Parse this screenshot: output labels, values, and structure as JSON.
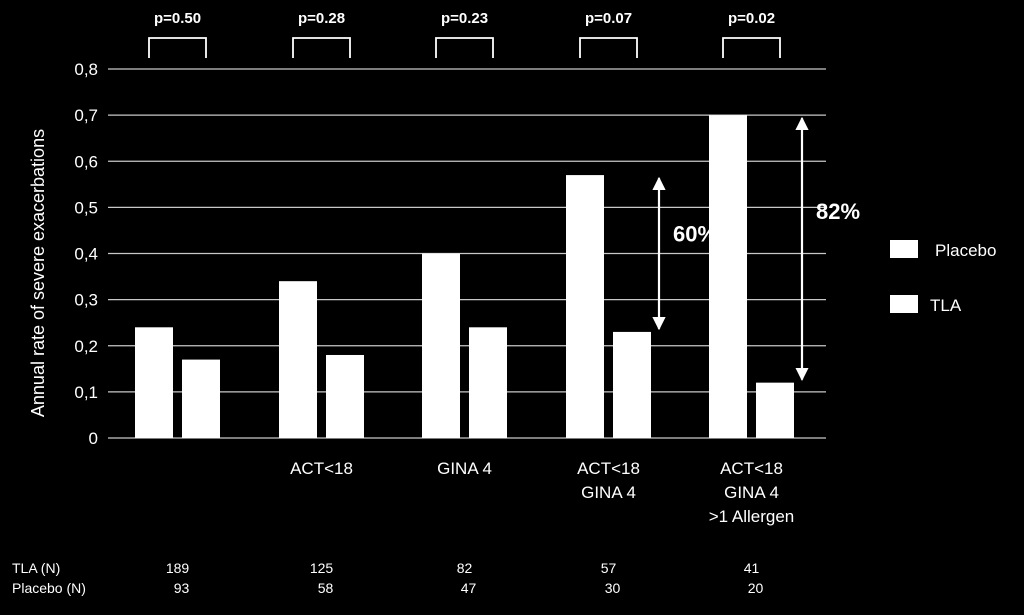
{
  "chart_data": {
    "type": "bar",
    "title": "",
    "xlabel": "",
    "ylabel": "Annual rate of severe exacerbations",
    "ylim": [
      0,
      0.8
    ],
    "yticks": [
      "0",
      "0,1",
      "0,2",
      "0,3",
      "0,4",
      "0,5",
      "0,6",
      "0,7",
      "0,8"
    ],
    "grid": true,
    "legend_position": "right",
    "categories": [
      [
        ""
      ],
      [
        "ACT<18"
      ],
      [
        "GINA 4"
      ],
      [
        "ACT<18",
        "GINA 4"
      ],
      [
        "ACT<18",
        "GINA 4",
        ">1 Allergen"
      ]
    ],
    "series": [
      {
        "name": "Placebo",
        "values": [
          0.24,
          0.34,
          0.4,
          0.57,
          0.7
        ],
        "color": "#ffffff"
      },
      {
        "name": "TLA",
        "values": [
          0.17,
          0.18,
          0.24,
          0.23,
          0.12
        ],
        "color": "#ffffff"
      }
    ],
    "p_values": [
      "p=0.50",
      "p=0.28",
      "p=0.23",
      "p=0.07",
      "p=0.02"
    ],
    "reductions": [
      {
        "category_index": 3,
        "label": "60%"
      },
      {
        "category_index": 4,
        "label": "82%"
      }
    ],
    "n_table": {
      "rows": [
        {
          "label": "TLA (N)",
          "values": [
            "189",
            "125",
            "82",
            "57",
            "41"
          ]
        },
        {
          "label": "Placebo (N)",
          "values": [
            "93",
            "58",
            "47",
            "30",
            "20"
          ]
        }
      ]
    },
    "colors": {
      "background": "#000000",
      "foreground": "#ffffff"
    }
  }
}
